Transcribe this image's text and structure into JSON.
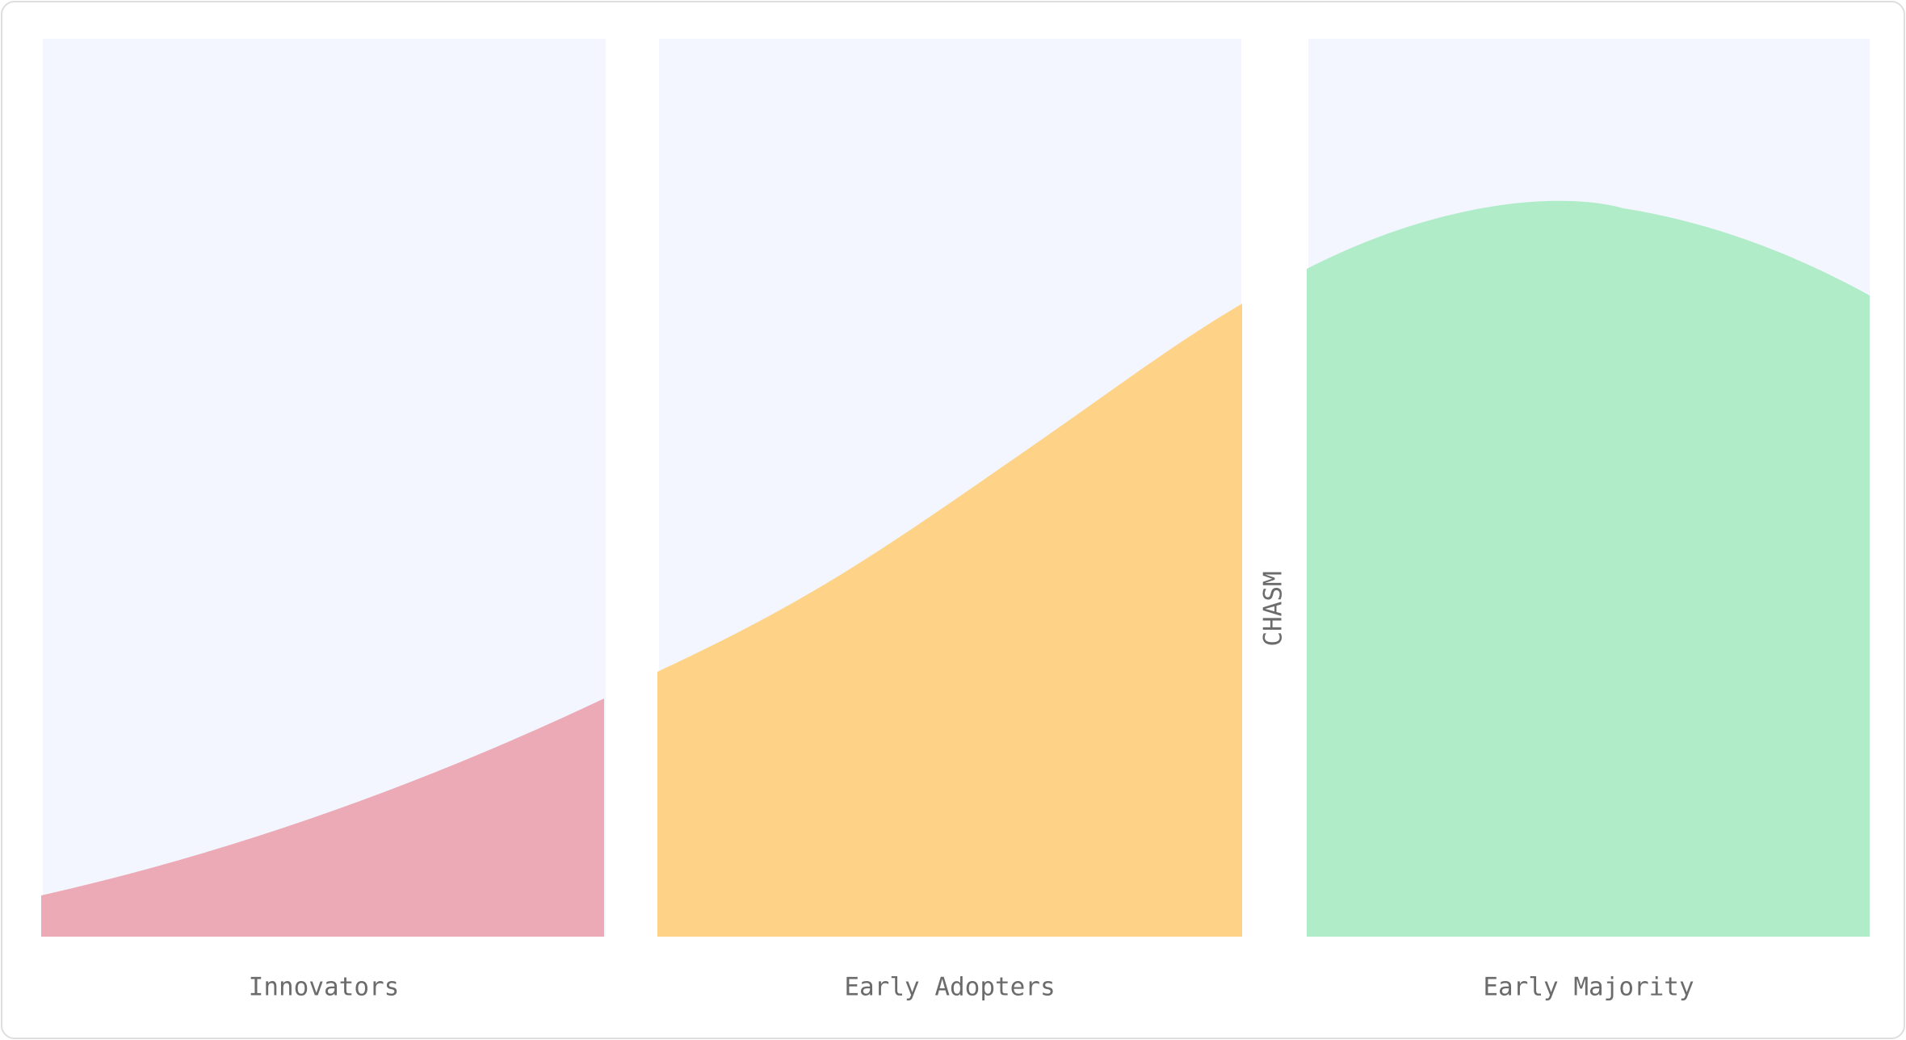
{
  "segments": [
    {
      "label": "Innovators"
    },
    {
      "label": "Early Adopters"
    },
    {
      "label": "Early Majority"
    }
  ],
  "gap_label": "CHASM"
}
